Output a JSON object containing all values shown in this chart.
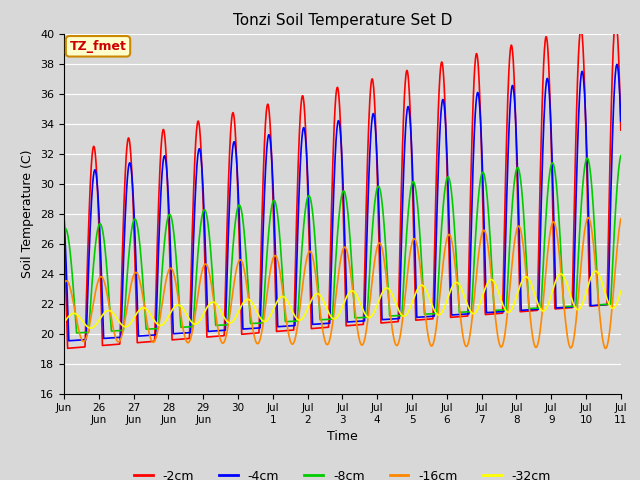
{
  "title": "Tonzi Soil Temperature Set D",
  "xlabel": "Time",
  "ylabel": "Soil Temperature (C)",
  "ylim": [
    16,
    40
  ],
  "yticks": [
    16,
    18,
    20,
    22,
    24,
    26,
    28,
    30,
    32,
    34,
    36,
    38,
    40
  ],
  "bg_color": "#d8d8d8",
  "grid_color": "#ffffff",
  "annotation_label": "TZ_fmet",
  "annotation_color": "#cc0000",
  "annotation_bg": "#ffffcc",
  "annotation_border": "#cc8800",
  "series": [
    {
      "label": "-2cm",
      "color": "#ff0000",
      "linewidth": 1.2
    },
    {
      "label": "-4cm",
      "color": "#0000ff",
      "linewidth": 1.2
    },
    {
      "label": "-8cm",
      "color": "#00cc00",
      "linewidth": 1.2
    },
    {
      "label": "-16cm",
      "color": "#ff8800",
      "linewidth": 1.2
    },
    {
      "label": "-32cm",
      "color": "#ffff00",
      "linewidth": 1.2
    }
  ],
  "num_days": 16,
  "points_per_day": 144,
  "figsize": [
    6.4,
    4.8
  ],
  "dpi": 100
}
